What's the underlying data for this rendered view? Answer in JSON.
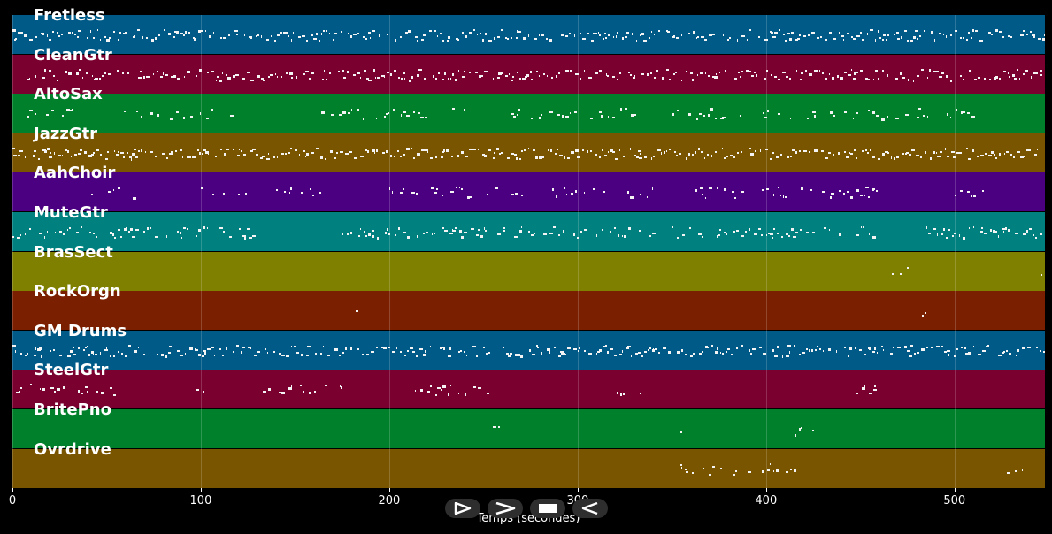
{
  "tracks": [
    {
      "name": "Fretless",
      "color": "#005a87",
      "density": 0.9,
      "regions": [
        [
          0,
          548
        ]
      ]
    },
    {
      "name": "CleanGtr",
      "color": "#7a0030",
      "density": 0.85,
      "regions": [
        [
          8,
          548
        ]
      ]
    },
    {
      "name": "AltoSax",
      "color": "#00802a",
      "density": 0.55,
      "regions": [
        [
          8,
          40
        ],
        [
          55,
          120
        ],
        [
          160,
          240
        ],
        [
          265,
          300
        ],
        [
          305,
          330
        ],
        [
          350,
          510
        ]
      ]
    },
    {
      "name": "JazzGtr",
      "color": "#7a5500",
      "density": 0.9,
      "regions": [
        [
          0,
          548
        ]
      ]
    },
    {
      "name": "AahChoir",
      "color": "#4b0082",
      "density": 0.45,
      "regions": [
        [
          38,
          70
        ],
        [
          100,
          125
        ],
        [
          140,
          175
        ],
        [
          200,
          275
        ],
        [
          285,
          340
        ],
        [
          360,
          460
        ],
        [
          500,
          515
        ]
      ]
    },
    {
      "name": "MuteGtr",
      "color": "#00807f",
      "density": 0.7,
      "regions": [
        [
          0,
          130
        ],
        [
          175,
          235
        ],
        [
          235,
          340
        ],
        [
          350,
          440
        ],
        [
          445,
          458
        ],
        [
          485,
          548
        ]
      ]
    },
    {
      "name": "BrasSect",
      "color": "#7f7f00",
      "density": 0.3,
      "regions": [
        [
          465,
          478
        ],
        [
          542,
          548
        ]
      ]
    },
    {
      "name": "RockOrgn",
      "color": "#7a2000",
      "density": 0.25,
      "regions": [
        [
          178,
          184
        ],
        [
          404,
          412
        ],
        [
          458,
          484
        ]
      ]
    },
    {
      "name": "GM Drums",
      "color": "#005a87",
      "density": 0.85,
      "regions": [
        [
          0,
          548
        ]
      ]
    },
    {
      "name": "SteelGtr",
      "color": "#7a0030",
      "density": 0.6,
      "regions": [
        [
          2,
          55
        ],
        [
          95,
          102
        ],
        [
          125,
          175
        ],
        [
          212,
          253
        ],
        [
          318,
          325
        ],
        [
          333,
          340
        ],
        [
          448,
          458
        ]
      ]
    },
    {
      "name": "BritePno",
      "color": "#00802a",
      "density": 0.35,
      "regions": [
        [
          255,
          265
        ],
        [
          270,
          275
        ],
        [
          290,
          298
        ],
        [
          352,
          356
        ],
        [
          415,
          425
        ]
      ]
    },
    {
      "name": "Ovrdrive",
      "color": "#7a5500",
      "density": 0.6,
      "regions": [
        [
          352,
          418
        ],
        [
          528,
          548
        ]
      ]
    }
  ],
  "xaxis": {
    "title": "Temps (secondes)",
    "ticks": [
      "0",
      "100",
      "200",
      "300",
      "400",
      "500"
    ],
    "tick_values": [
      0,
      100,
      200,
      300,
      400,
      500
    ],
    "max": 548
  },
  "controls": [
    {
      "name": "play-icon"
    },
    {
      "name": "fast-forward-icon"
    },
    {
      "name": "stop-icon"
    },
    {
      "name": "rewind-icon"
    }
  ]
}
